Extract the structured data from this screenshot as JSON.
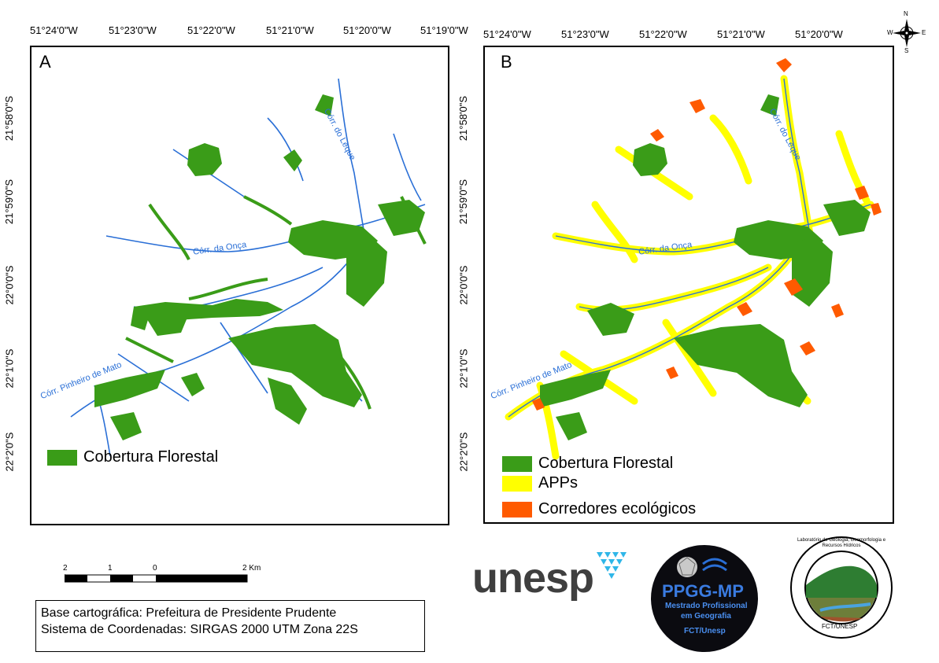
{
  "top_longitudes_a": [
    "51°24'0\"W",
    "51°23'0\"W",
    "51°22'0\"W",
    "51°21'0\"W",
    "51°20'0\"W",
    "51°19'0\"W"
  ],
  "top_longitudes_b": [
    "51°24'0\"W",
    "51°23'0\"W",
    "51°22'0\"W",
    "51°21'0\"W",
    "51°20'0\"W"
  ],
  "left_latitudes": [
    "21°58'0\"S",
    "21°59'0\"S",
    "22°0'0\"S",
    "22°1'0\"S",
    "22°2'0\"S"
  ],
  "panels": [
    {
      "letter": "A",
      "rivers": [
        "Córr. da Onça",
        "Córr. do Leque",
        "Córr. Pinheiro de Mato"
      ],
      "legend": [
        {
          "label": "Cobertura Florestal",
          "color": "#3a9c18"
        }
      ]
    },
    {
      "letter": "B",
      "rivers": [
        "Córr. da Onça",
        "Córr. do Leque",
        "Córr. Pinheiro de Mato"
      ],
      "legend": [
        {
          "label": "Cobertura Florestal",
          "color": "#3a9c18"
        },
        {
          "label": "APPs",
          "color": "#ffff00"
        },
        {
          "label": "Corredores ecológicos",
          "color": "#ff5a00"
        }
      ]
    }
  ],
  "north_arrow": {
    "n": "N",
    "s": "S",
    "e": "E",
    "w": "W"
  },
  "scale_bar": {
    "labels": [
      "2",
      "1",
      "0",
      "2 Km"
    ]
  },
  "source": {
    "line1": "Base cartográfica: Prefeitura de Presidente Prudente",
    "line2": "Sistema de Coordenadas: SIRGAS 2000 UTM Zona 22S"
  },
  "logos": {
    "unesp": "unesp",
    "ppgg_title": "PPGG-MP",
    "ppgg_line1": "Mestrado Profissional",
    "ppgg_line2": "em Geografia",
    "ppgg_line3": "FCT/Unesp",
    "lab_ring": "Laboratório de Geologia, Geomorfologia e Recursos Hídricos",
    "lab_bottom": "FCT/UNESP"
  },
  "colors": {
    "forest": "#3a9c18",
    "app": "#ffff00",
    "corridor": "#ff5a00",
    "river": "#2a6fd6"
  }
}
